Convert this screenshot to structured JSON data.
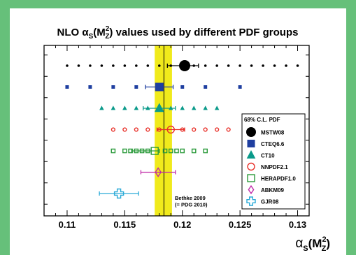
{
  "chart_data": {
    "type": "scatter",
    "title": "NLO αS(M²Z) values used by different PDF groups",
    "title_parts": {
      "prefix": "NLO α",
      "sub": "S",
      "paren_open": "(M",
      "sup": "2",
      "sub2": "Z",
      "suffix": ") values used by different PDF groups"
    },
    "xlabel_parts": {
      "alpha": "α",
      "sub": "S",
      "paren_open": "(M",
      "sup": "2",
      "sub2": "Z",
      "paren_close": ")"
    },
    "xlim": [
      0.108,
      0.131
    ],
    "x_ticks": [
      0.11,
      0.115,
      0.12,
      0.125,
      0.13
    ],
    "x_tick_labels": [
      "0.11",
      "0.115",
      "0.12",
      "0.125",
      "0.13"
    ],
    "world_average": {
      "value": 0.1184,
      "band": [
        0.1176,
        0.1191
      ]
    },
    "annotation": [
      "Bethke 2009",
      "(= PDG 2010)"
    ],
    "legend": {
      "title": "68% C.L. PDF",
      "placement": "right"
    },
    "series": [
      {
        "name": "MSTW08",
        "marker": "filled-circle",
        "color": "#000000",
        "central": 0.1202,
        "err": [
          0.1187,
          0.1214
        ],
        "grid": [
          0.11,
          0.111,
          0.112,
          0.113,
          0.114,
          0.115,
          0.116,
          0.117,
          0.118,
          0.119,
          0.121,
          0.122,
          0.123,
          0.124,
          0.125,
          0.126,
          0.127,
          0.128,
          0.129,
          0.13
        ]
      },
      {
        "name": "CTEQ6.6",
        "marker": "filled-square",
        "color": "#1f3fa0",
        "central": 0.118,
        "err": [
          0.1168,
          0.1192
        ],
        "grid": [
          0.11,
          0.112,
          0.114,
          0.116,
          0.118,
          0.12,
          0.122,
          0.125
        ]
      },
      {
        "name": "CT10",
        "marker": "filled-triangle",
        "color": "#0a9a8a",
        "central": 0.118,
        "err": [
          0.1166,
          0.1194
        ],
        "grid": [
          0.113,
          0.114,
          0.115,
          0.116,
          0.117,
          0.119,
          0.12,
          0.121,
          0.122,
          0.123
        ]
      },
      {
        "name": "NNPDF2.1",
        "marker": "open-circle",
        "color": "#e8312a",
        "central": 0.119,
        "err": [
          0.1178,
          0.1202
        ],
        "grid": [
          0.114,
          0.115,
          0.116,
          0.117,
          0.118,
          0.12,
          0.121,
          0.122,
          0.123,
          0.124
        ]
      },
      {
        "name": "HERAPDF1.0",
        "marker": "open-square",
        "color": "#2a9a3a",
        "central": 0.1176,
        "err": [
          0.1156,
          0.118
        ],
        "grid": [
          0.114,
          0.115,
          0.1155,
          0.116,
          0.1165,
          0.117,
          0.1185,
          0.119,
          0.1195,
          0.12,
          0.121,
          0.122
        ]
      },
      {
        "name": "ABKM09",
        "marker": "open-diamond",
        "color": "#c02aa8",
        "central": 0.1179,
        "err": [
          0.1164,
          0.1194
        ],
        "grid": []
      },
      {
        "name": "GJR08",
        "marker": "open-cross",
        "color": "#2aaad8",
        "central": 0.1145,
        "err": [
          0.1128,
          0.1162
        ],
        "grid": []
      }
    ]
  }
}
